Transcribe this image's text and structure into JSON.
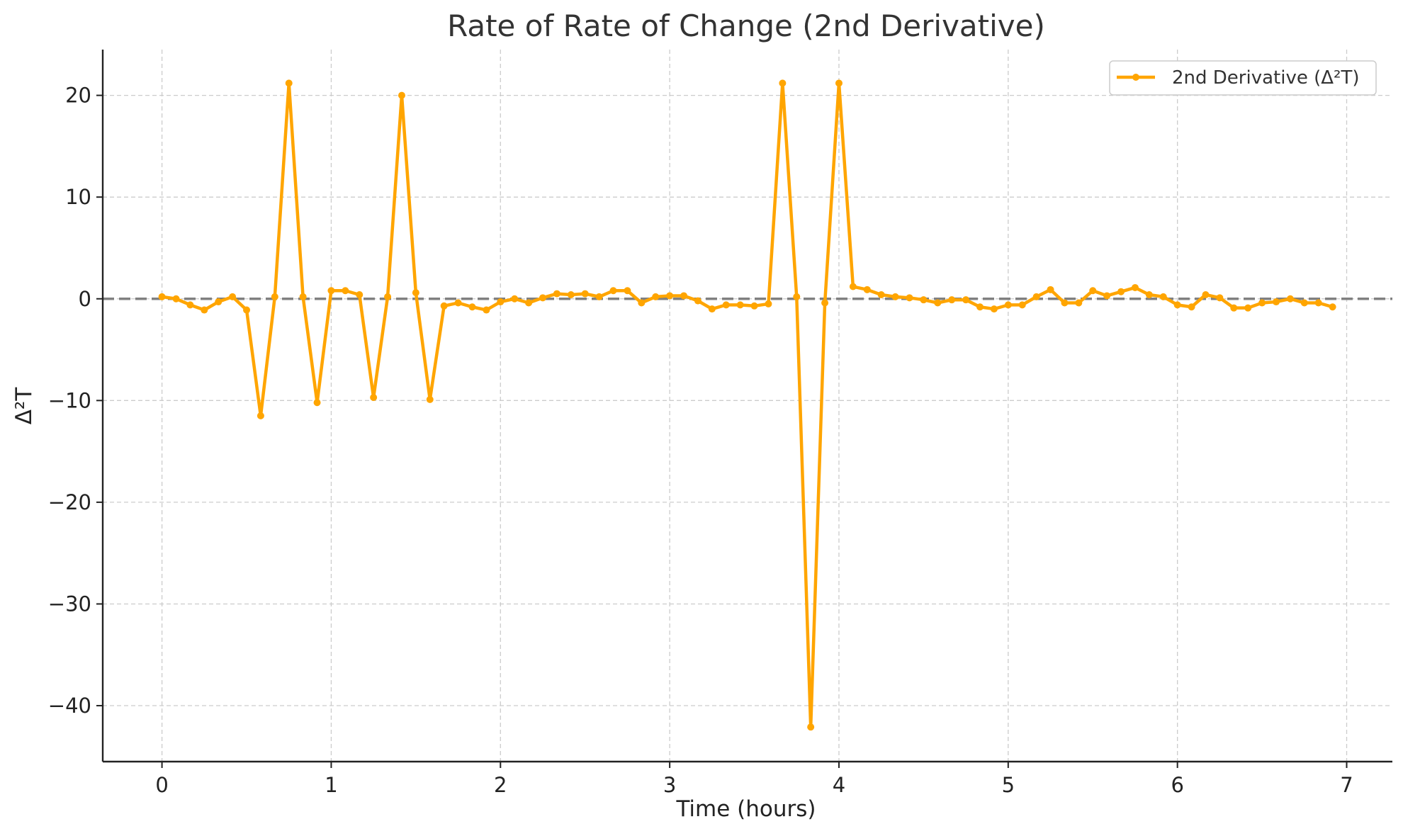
{
  "chart_data": {
    "type": "line",
    "title": "Rate of Rate of Change (2nd Derivative)",
    "xlabel": "Time (hours)",
    "ylabel": "Δ²T",
    "xlim": [
      -0.35,
      7.27
    ],
    "ylim": [
      -45.5,
      24.5
    ],
    "xticks": [
      0,
      1,
      2,
      3,
      4,
      5,
      6,
      7
    ],
    "yticks": [
      20,
      10,
      0,
      -10,
      -20,
      -30,
      -40
    ],
    "ytick_labels": [
      "20",
      "10",
      "0",
      "−10",
      "−20",
      "−30",
      "−40"
    ],
    "grid": true,
    "legend_position": "top-right",
    "reference_line": {
      "y": 0,
      "style": "dashed",
      "color": "#808080"
    },
    "series": [
      {
        "name": "2nd Derivative (Δ²T)",
        "color": "#FFA500",
        "x": [
          0,
          0.0833,
          0.1667,
          0.25,
          0.3333,
          0.4167,
          0.5,
          0.5833,
          0.6667,
          0.75,
          0.8333,
          0.9167,
          1.0,
          1.0833,
          1.1667,
          1.25,
          1.3333,
          1.4167,
          1.5,
          1.5833,
          1.6667,
          1.75,
          1.8333,
          1.9167,
          2.0,
          2.0833,
          2.1667,
          2.25,
          2.3333,
          2.4167,
          2.5,
          2.5833,
          2.6667,
          2.75,
          2.8333,
          2.9167,
          3.0,
          3.0833,
          3.1667,
          3.25,
          3.3333,
          3.4167,
          3.5,
          3.5833,
          3.6667,
          3.75,
          3.8333,
          3.9167,
          4.0,
          4.0833,
          4.1667,
          4.25,
          4.3333,
          4.4167,
          4.5,
          4.5833,
          4.6667,
          4.75,
          4.8333,
          4.9167,
          5.0,
          5.0833,
          5.1667,
          5.25,
          5.3333,
          5.4167,
          5.5,
          5.5833,
          5.6667,
          5.75,
          5.8333,
          5.9167,
          6.0,
          6.0833,
          6.1667,
          6.25,
          6.3333,
          6.4167,
          6.5,
          6.5833,
          6.6667,
          6.75,
          6.8333,
          6.9167
        ],
        "values": [
          0.2,
          0.0,
          -0.6,
          -1.1,
          -0.3,
          0.2,
          -1.1,
          -11.5,
          0.2,
          21.2,
          0.2,
          -10.2,
          0.8,
          0.8,
          0.4,
          -9.7,
          0.2,
          20.0,
          0.6,
          -9.9,
          -0.7,
          -0.4,
          -0.8,
          -1.1,
          -0.3,
          0.0,
          -0.4,
          0.1,
          0.5,
          0.4,
          0.5,
          0.2,
          0.8,
          0.8,
          -0.4,
          0.2,
          0.3,
          0.3,
          -0.2,
          -1.0,
          -0.6,
          -0.6,
          -0.7,
          -0.5,
          21.2,
          0.2,
          -42.1,
          -0.4,
          21.2,
          1.2,
          0.9,
          0.4,
          0.2,
          0.1,
          -0.1,
          -0.4,
          -0.1,
          -0.1,
          -0.8,
          -1.0,
          -0.6,
          -0.6,
          0.2,
          0.9,
          -0.4,
          -0.4,
          0.8,
          0.3,
          0.7,
          1.1,
          0.4,
          0.2,
          -0.6,
          -0.8,
          0.4,
          0.1,
          -0.9,
          -0.9,
          -0.4,
          -0.3,
          0.0,
          -0.4,
          -0.4,
          -0.8
        ]
      }
    ]
  }
}
